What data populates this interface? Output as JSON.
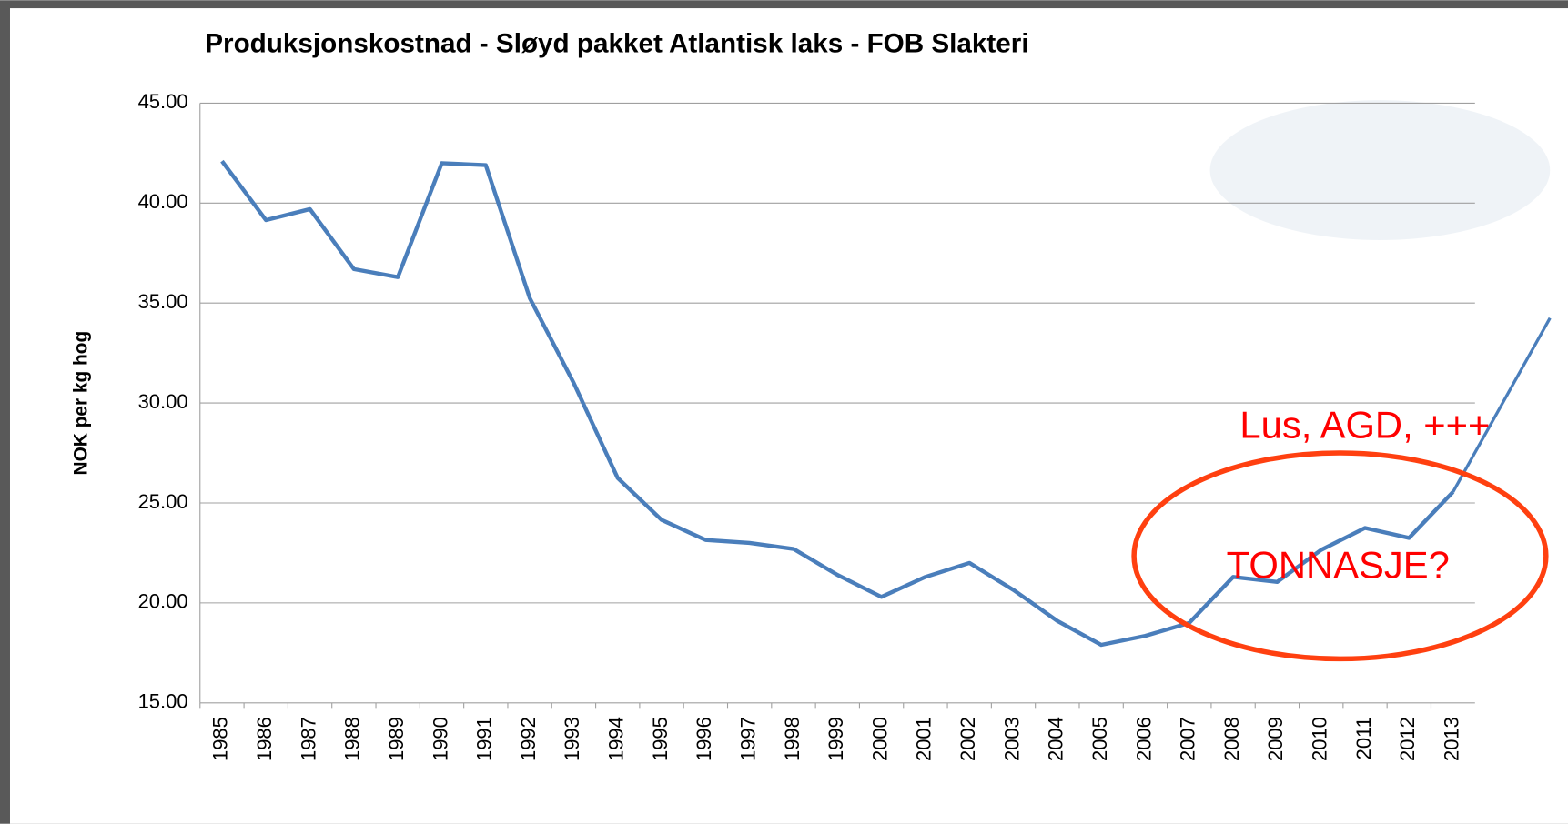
{
  "chart_data": {
    "type": "line",
    "title": "Produksjonskostnad  - Sløyd pakket Atlantisk laks - FOB Slakteri",
    "y_label": "NOK per kg hog",
    "categories": [
      "1985",
      "1986",
      "1987",
      "1988",
      "1989",
      "1990",
      "1991",
      "1992",
      "1993",
      "1994",
      "1995",
      "1996",
      "1997",
      "1998",
      "1999",
      "2000",
      "2001",
      "2002",
      "2003",
      "2004",
      "2005",
      "2006",
      "2007",
      "2008",
      "2009",
      "2010",
      "2011",
      "2012",
      "2013"
    ],
    "series": [
      {
        "color": "#4a7ebb",
        "values": [
          42.1,
          39.15,
          39.7,
          36.7,
          36.3,
          42.0,
          41.9,
          35.25,
          31.0,
          26.25,
          24.15,
          23.15,
          23.0,
          22.7,
          21.4,
          20.3,
          21.3,
          22.0,
          20.65,
          19.1,
          17.9,
          18.35,
          19.0,
          21.3,
          21.05,
          22.65,
          23.75,
          23.25,
          25.55
        ]
      }
    ],
    "ylim": [
      15,
      45
    ],
    "yticks": [
      {
        "value": 15,
        "label": "15.00"
      },
      {
        "value": 20,
        "label": "20.00"
      },
      {
        "value": 25,
        "label": "25.00"
      },
      {
        "value": 30,
        "label": "30.00"
      },
      {
        "value": 35,
        "label": "35.00"
      },
      {
        "value": 40,
        "label": "40.00"
      },
      {
        "value": 45,
        "label": "45.00"
      }
    ],
    "grid": true,
    "annotations": [
      "Lus, AGD, +++",
      "TONNASJE?"
    ],
    "annotation_color": "#ff0000"
  }
}
